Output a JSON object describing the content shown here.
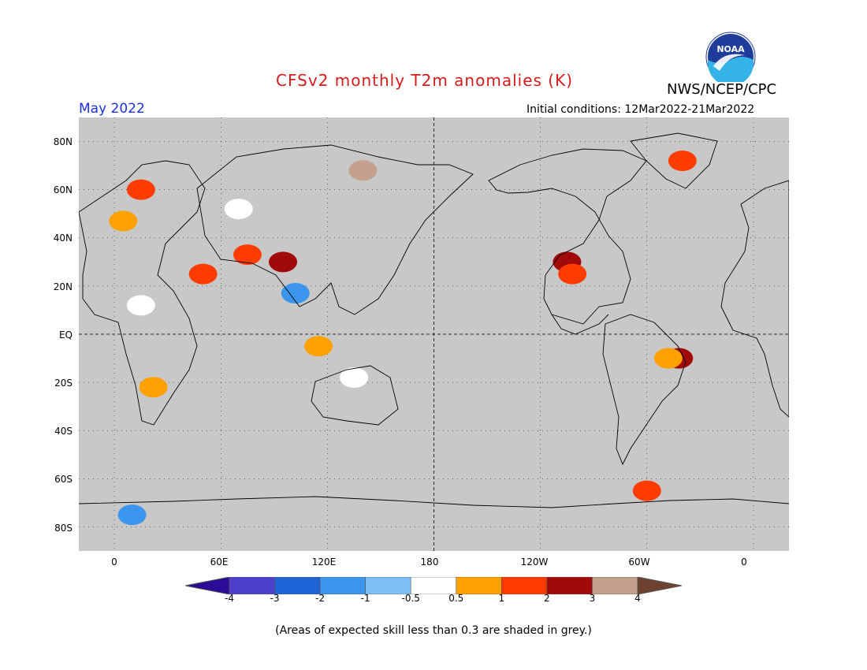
{
  "title": "CFSv2 monthly T2m anomalies (K)",
  "valid_month": "May 2022",
  "organization": "NWS/NCEP/CPC",
  "logo_text": "NOAA",
  "initial_conditions": "Initial conditions: 12Mar2022-21Mar2022",
  "lat_labels": [
    "80N",
    "60N",
    "40N",
    "20N",
    "EQ",
    "20S",
    "40S",
    "60S",
    "80S"
  ],
  "lon_labels": [
    "0",
    "60E",
    "120E",
    "180",
    "120W",
    "60W",
    "0"
  ],
  "colorbar": {
    "ticks": [
      "-4",
      "-3",
      "-2",
      "-1",
      "-0.5",
      "0.5",
      "1",
      "2",
      "3",
      "4"
    ],
    "colors": [
      "#2a0c96",
      "#4d3ecb",
      "#1f64d6",
      "#3d96ee",
      "#7ec0f5",
      "#ffffff",
      "#ffa100",
      "#ff3c00",
      "#a10a08",
      "#c4a08e",
      "#6e4230"
    ]
  },
  "map": {
    "background": "#c8c8c8",
    "projection_note": "",
    "lon_range": [
      -20,
      380
    ],
    "lat_range": [
      -90,
      90
    ],
    "anomaly_regions": [
      {
        "name": "us-southwest",
        "lon": 255,
        "lat": 30,
        "level": "3"
      },
      {
        "name": "us-south",
        "lon": 258,
        "lat": 25,
        "level": "2"
      },
      {
        "name": "brazil-east",
        "lon": 318,
        "lat": -10,
        "level": "3"
      },
      {
        "name": "brazil-central",
        "lon": 312,
        "lat": -10,
        "level": "1"
      },
      {
        "name": "middle-east",
        "lon": 50,
        "lat": 25,
        "level": "2"
      },
      {
        "name": "central-asia",
        "lon": 75,
        "lat": 33,
        "level": "2"
      },
      {
        "name": "china",
        "lon": 95,
        "lat": 30,
        "level": "3"
      },
      {
        "name": "mongolia",
        "lon": 70,
        "lat": 52,
        "level": "-0.5"
      },
      {
        "name": "indochina",
        "lon": 102,
        "lat": 17,
        "level": "-1"
      },
      {
        "name": "siberia-east",
        "lon": 140,
        "lat": 68,
        "level": "4"
      },
      {
        "name": "greenland",
        "lon": 320,
        "lat": 72,
        "level": "2"
      },
      {
        "name": "scandinavia",
        "lon": 15,
        "lat": 60,
        "level": "2"
      },
      {
        "name": "europe",
        "lon": 5,
        "lat": 47,
        "level": "1"
      },
      {
        "name": "sahel",
        "lon": 15,
        "lat": 12,
        "level": "-0.5"
      },
      {
        "name": "southern-africa",
        "lon": 22,
        "lat": -22,
        "level": "1"
      },
      {
        "name": "australia-north",
        "lon": 135,
        "lat": -18,
        "level": "-0.5"
      },
      {
        "name": "indonesia",
        "lon": 115,
        "lat": -5,
        "level": "1"
      },
      {
        "name": "antarctic-peninsula",
        "lon": 300,
        "lat": -65,
        "level": "2"
      },
      {
        "name": "antarctica-east",
        "lon": 10,
        "lat": -75,
        "level": "-1"
      }
    ]
  },
  "footnote": "(Areas of expected skill less than 0.3 are shaded in grey.)"
}
